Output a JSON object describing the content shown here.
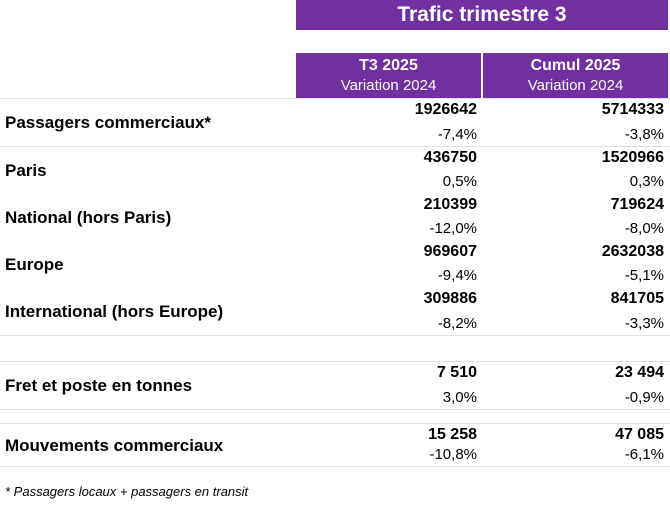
{
  "header": {
    "title": "Trafic trimestre 3",
    "columns": [
      {
        "title": "T3 2025",
        "subtitle": "Variation 2024"
      },
      {
        "title": "Cumul 2025",
        "subtitle": "Variation 2024"
      }
    ]
  },
  "table": {
    "rows": [
      {
        "label": "Passagers commerciaux*",
        "cells": [
          {
            "value": "1926642",
            "variation": "-7,4%"
          },
          {
            "value": "5714333",
            "variation": "-3,8%"
          }
        ]
      },
      {
        "label": "Paris",
        "cells": [
          {
            "value": "436750",
            "variation": "0,5%"
          },
          {
            "value": "1520966",
            "variation": "0,3%"
          }
        ]
      },
      {
        "label": "National (hors Paris)",
        "cells": [
          {
            "value": "210399",
            "variation": "-12,0%"
          },
          {
            "value": "719624",
            "variation": "-8,0%"
          }
        ]
      },
      {
        "label": "Europe",
        "cells": [
          {
            "value": "969607",
            "variation": "-9,4%"
          },
          {
            "value": "2632038",
            "variation": "-5,1%"
          }
        ]
      },
      {
        "label": "International (hors Europe)",
        "cells": [
          {
            "value": "309886",
            "variation": "-8,2%"
          },
          {
            "value": "841705",
            "variation": "-3,3%"
          }
        ]
      },
      {
        "label": "Fret et poste en tonnes",
        "cells": [
          {
            "value": "7 510",
            "variation": "3,0%"
          },
          {
            "value": "23 494",
            "variation": "-0,9%"
          }
        ]
      },
      {
        "label": "Mouvements commerciaux",
        "cells": [
          {
            "value": "15 258",
            "variation": "-10,8%"
          },
          {
            "value": "47 085",
            "variation": "-6,1%"
          }
        ]
      }
    ]
  },
  "footnote": "* Passagers locaux + passagers en transit"
}
